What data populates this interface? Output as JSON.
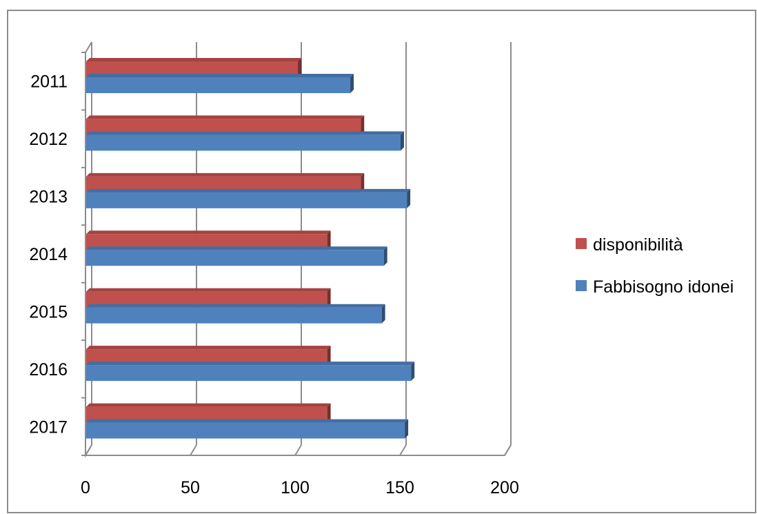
{
  "chart_data": {
    "type": "bar",
    "orientation": "horizontal",
    "style": "3d-clustered",
    "title": "",
    "xlabel": "",
    "ylabel": "",
    "categories": [
      "2011",
      "2012",
      "2013",
      "2014",
      "2015",
      "2016",
      "2017"
    ],
    "series": [
      {
        "name": "disponibilità",
        "color": "#c0504d",
        "values": [
          101,
          131,
          131,
          115,
          115,
          115,
          115
        ]
      },
      {
        "name": "Fabbisogno idonei",
        "color": "#4f81bd",
        "values": [
          126,
          150,
          153,
          142,
          141,
          155,
          152
        ]
      }
    ],
    "xlim": [
      0,
      200
    ],
    "xticks": [
      "0",
      "50",
      "100",
      "150",
      "200"
    ],
    "grid": true,
    "legend_position": "right"
  }
}
